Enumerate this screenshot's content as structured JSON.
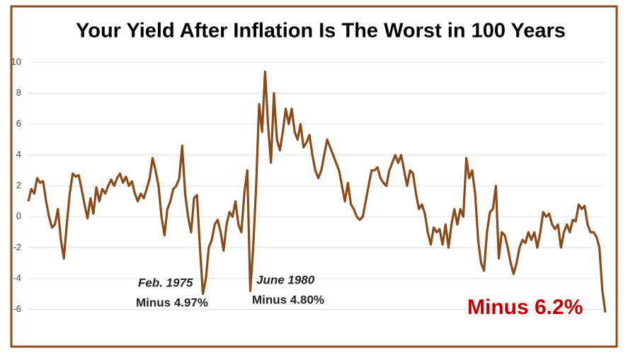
{
  "chart_data": {
    "type": "line",
    "title": "Your Yield After Inflation Is The Worst in 100 Years",
    "annotations": [
      "Feb. 1975",
      "Minus 4.97%",
      "June 1980",
      "Minus 4.80%",
      "Minus 6.2%"
    ],
    "series": [
      {
        "color": "#8b4a1a",
        "values": [
          1.0,
          1.8,
          1.5,
          2.5,
          2.2,
          2.3,
          1.0,
          0,
          -0.7,
          -0.5,
          0.5,
          -1.5,
          -2.7,
          -0.5,
          1.5,
          2.8,
          2.6,
          2.7,
          1.8,
          0.8,
          -0.1,
          1.2,
          0.2,
          1.9,
          1.0,
          1.8,
          1.5,
          2.0,
          2.4,
          2.0,
          2.5,
          2.8,
          2.2,
          2.6,
          2.0,
          2.3,
          1.5,
          1.0,
          1.5,
          1.2,
          1.8,
          2.5,
          3.8,
          3.0,
          2.0,
          0,
          -1.2,
          0.5,
          1.0,
          1.8,
          2.0,
          2.5,
          4.6,
          1.5,
          0,
          -1.0,
          1.2,
          1.4,
          -2.0,
          -5.0,
          -4.0,
          -2.0,
          -1.5,
          -0.5,
          -0.2,
          -1.0,
          -2.2,
          -0.5,
          0.3,
          0,
          1.0,
          -0.5,
          -1.0,
          1.5,
          3.0,
          -4.8,
          -2.0,
          2.0,
          7.3,
          5.5,
          9.4,
          6.0,
          3.5,
          8.0,
          5.0,
          4.3,
          5.5,
          7.0,
          6.0,
          7.0,
          5.5,
          5.0,
          6.0,
          4.5,
          4.8,
          5.3,
          4.0,
          3.0,
          2.5,
          3.0,
          4.0,
          5.0,
          4.5,
          4.0,
          3.5,
          3.0,
          2.0,
          1.0,
          2.2,
          0.8,
          0.5,
          0,
          -0.2,
          0,
          1.0,
          2.0,
          3.0,
          3.0,
          3.2,
          2.5,
          2.2,
          2.0,
          3.0,
          3.5,
          4.0,
          3.5,
          4.0,
          3.0,
          2.0,
          3.0,
          2.8,
          1.5,
          0.5,
          0.8,
          0.2,
          -1.0,
          -1.8,
          -0.7,
          -1.0,
          -0.8,
          -1.8,
          -0.5,
          -2.0,
          -0.5,
          0.5,
          -0.5,
          0.5,
          0.0,
          3.8,
          2.5,
          3.0,
          1.5,
          -1.5,
          -3.0,
          -3.5,
          -1.0,
          0.3,
          0.5,
          2.0,
          -2.7,
          -1.0,
          -1.2,
          -2.0,
          -3.0,
          -3.7,
          -3.0,
          -2.0,
          -1.5,
          -1.7,
          -1.0,
          -1.5,
          -1.0,
          -2.0,
          -1.0,
          0.3,
          0.0,
          0.2,
          -0.5,
          -0.8,
          -0.5,
          -2.0,
          -1.0,
          -0.5,
          -1.0,
          -0.2,
          -0.3,
          0.8,
          0.5,
          0.7,
          -0.5,
          -1.0,
          -1.0,
          -1.3,
          -2.0,
          -4.8,
          -6.2
        ]
      }
    ],
    "ylim": [
      -8,
      10
    ],
    "yticks": [
      -6,
      -4,
      -2,
      0,
      2,
      4,
      6,
      8,
      10
    ],
    "grid": true
  }
}
